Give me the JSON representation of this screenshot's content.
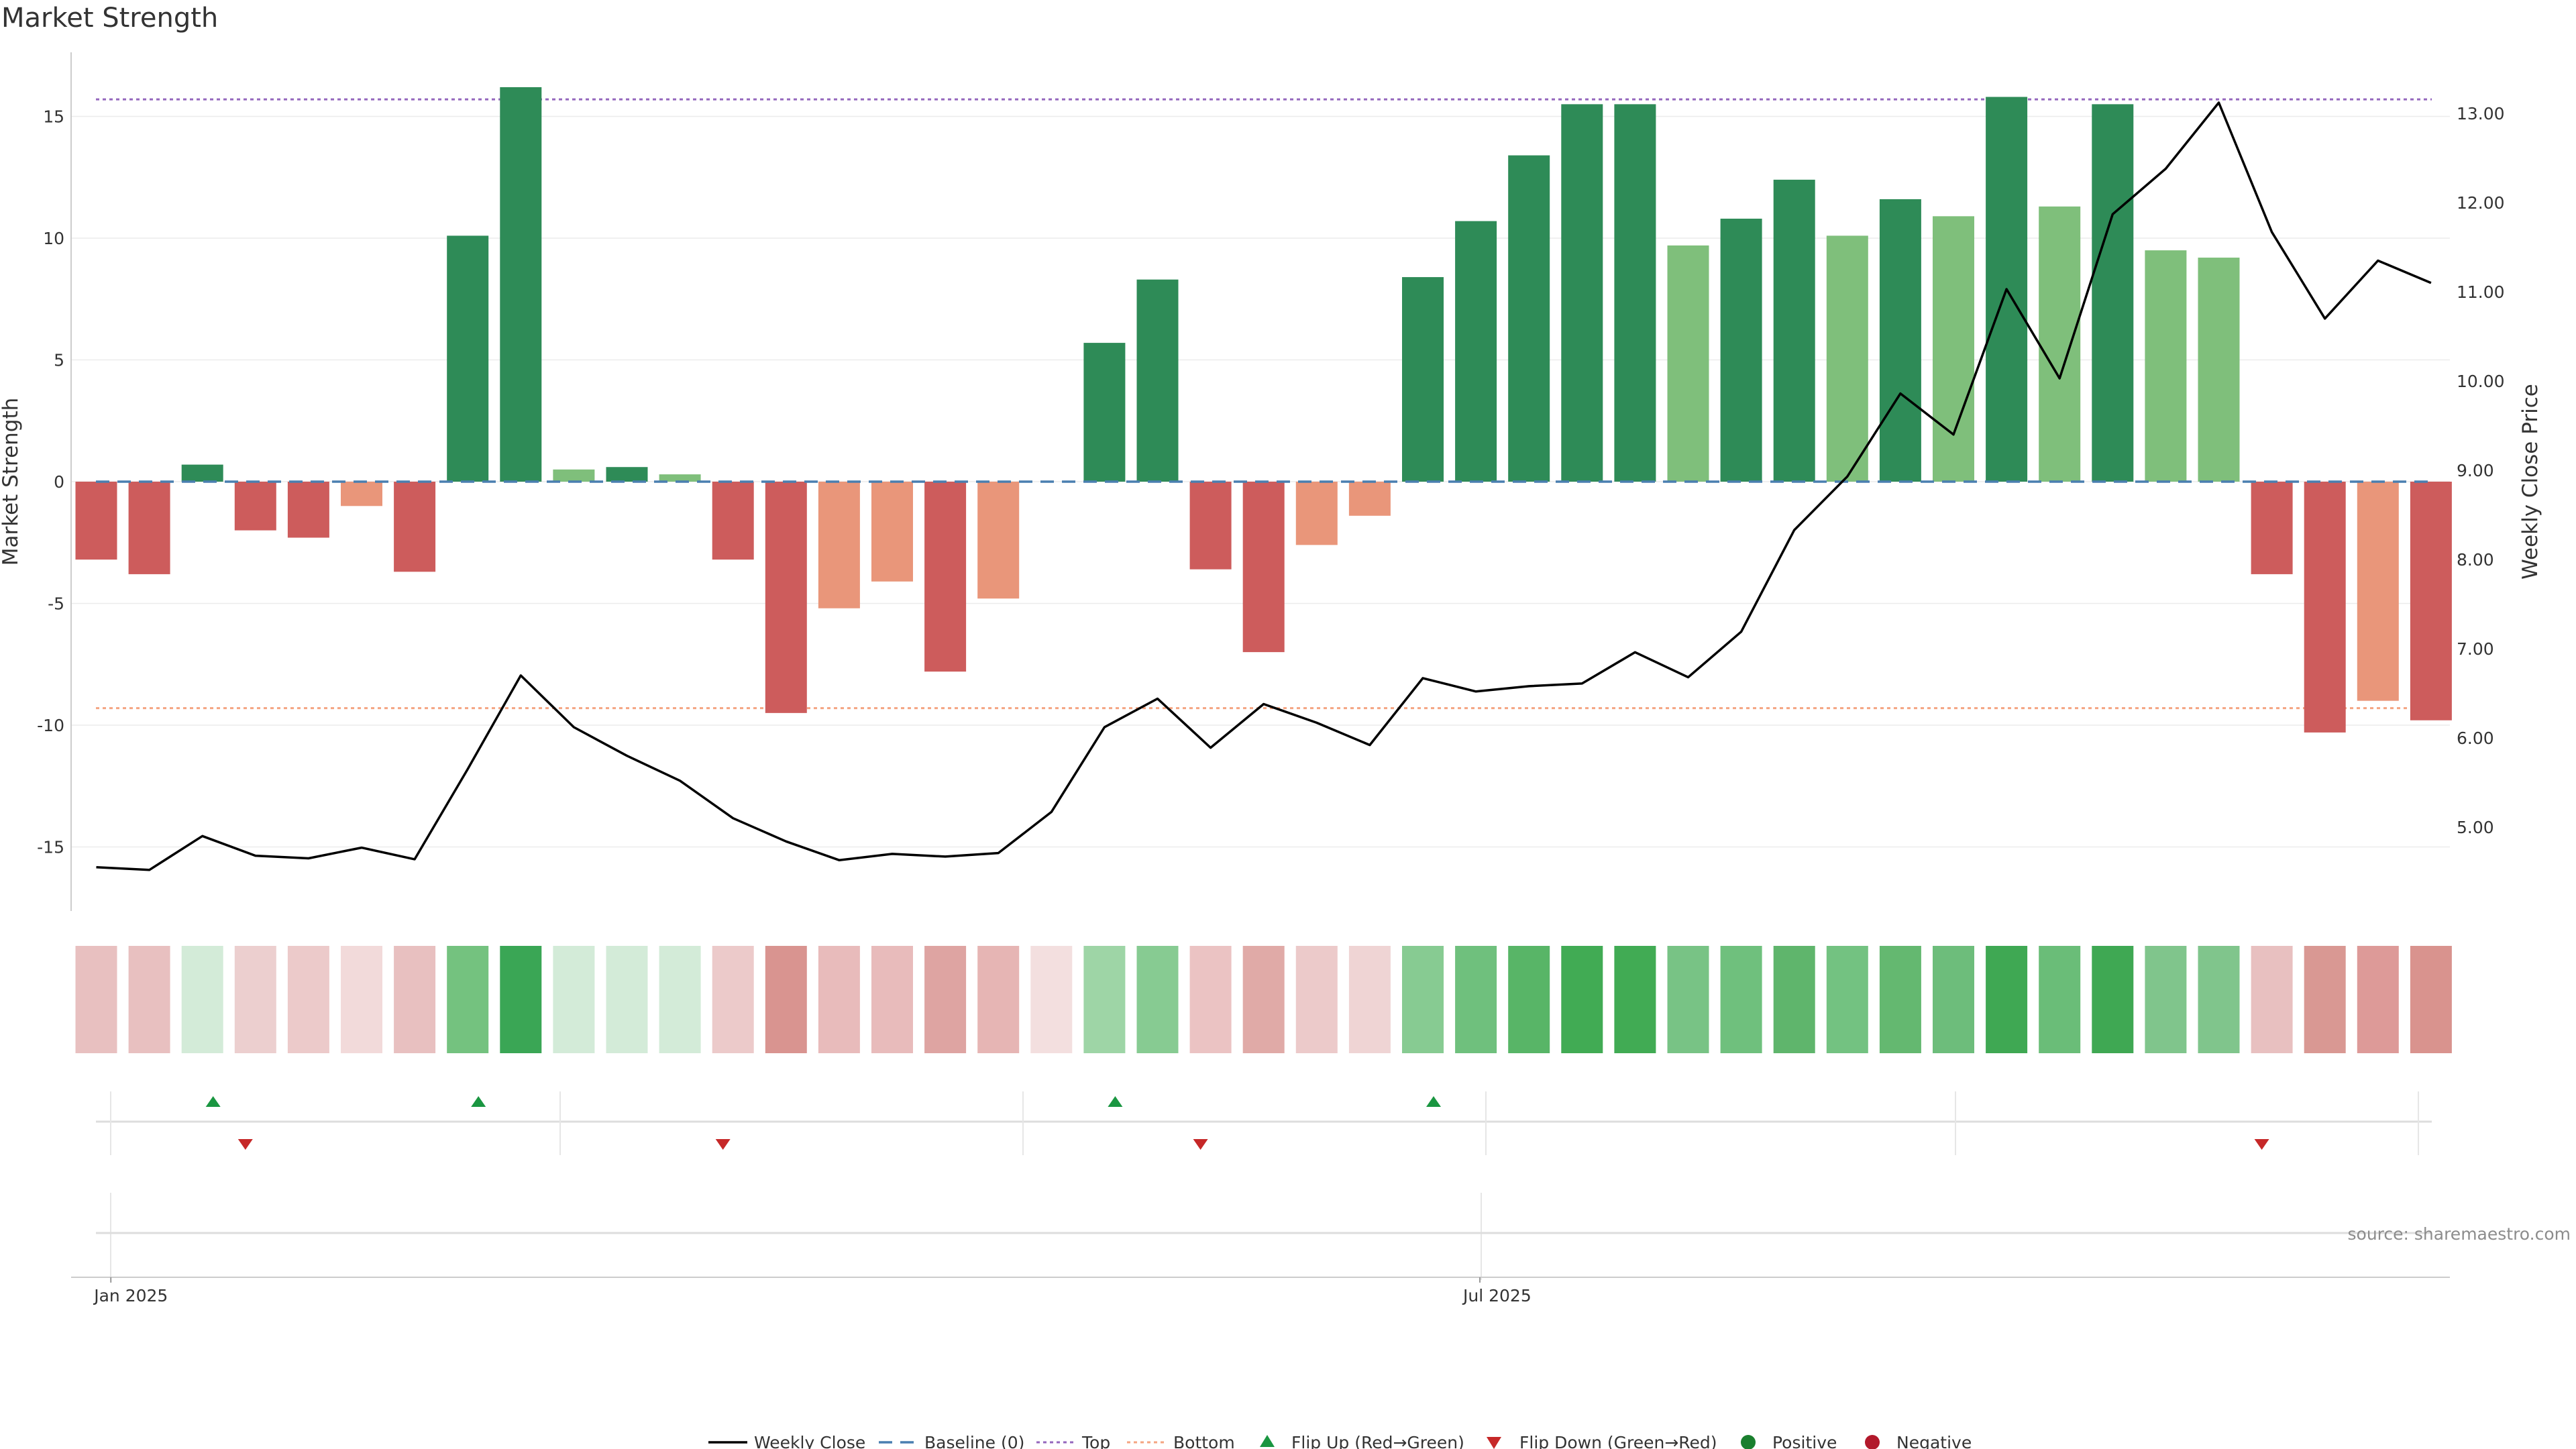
{
  "chart_data": {
    "type": "bar",
    "title": "Market Strength",
    "ylabel": "Market Strength",
    "y2label": "Weekly Close Price",
    "ylim": [
      -17.5,
      17.5
    ],
    "y2lim": [
      4.0,
      13.5
    ],
    "yticks": [
      15,
      10,
      5,
      0,
      -5,
      -10,
      -15
    ],
    "y2ticks": [
      "5.00",
      "6.00",
      "7.00",
      "8.00",
      "9.00",
      "10.00",
      "11.00",
      "12.00",
      "13.00"
    ],
    "top_line": 15.7,
    "bottom_line": -9.3,
    "x_tick_labels": [
      {
        "index": 0.3,
        "label": "Jan 2025"
      },
      {
        "index": 26.1,
        "label": "Jul 2025"
      }
    ],
    "strength": [
      -3.2,
      -3.8,
      0.7,
      -2.0,
      -2.3,
      -1.0,
      -3.7,
      10.1,
      16.2,
      0.5,
      0.6,
      0.3,
      -3.2,
      -9.5,
      -5.2,
      -4.1,
      -7.8,
      -4.8,
      0.0,
      5.7,
      8.3,
      -3.6,
      -7.0,
      -2.6,
      -1.4,
      8.4,
      10.7,
      13.4,
      15.5,
      15.5,
      9.7,
      10.8,
      12.4,
      10.1,
      11.6,
      10.9,
      15.8,
      11.3,
      15.5,
      9.5,
      9.2,
      -3.8,
      -10.3,
      -9.0,
      -9.8
    ],
    "bar_shade": [
      "dark",
      "dark",
      "dark",
      "dark",
      "dark",
      "light",
      "dark",
      "dark",
      "dark",
      "light",
      "dark",
      "light",
      "dark",
      "dark",
      "light",
      "light",
      "dark",
      "light",
      "none",
      "dark",
      "dark",
      "dark",
      "dark",
      "light",
      "light",
      "dark",
      "dark",
      "dark",
      "dark",
      "dark",
      "light",
      "dark",
      "dark",
      "light",
      "dark",
      "light",
      "dark",
      "light",
      "dark",
      "light",
      "light",
      "dark",
      "dark",
      "light",
      "dark"
    ],
    "weekly_close": [
      4.55,
      4.52,
      4.9,
      4.68,
      4.65,
      4.77,
      4.64,
      5.65,
      6.7,
      6.12,
      5.8,
      5.52,
      5.1,
      4.84,
      4.63,
      4.7,
      4.67,
      4.71,
      5.17,
      6.12,
      6.44,
      5.89,
      6.38,
      6.17,
      5.92,
      6.67,
      6.52,
      6.58,
      6.61,
      6.96,
      6.68,
      7.19,
      8.33,
      8.93,
      9.86,
      9.4,
      11.03,
      10.03,
      11.87,
      12.38,
      13.12,
      11.67,
      10.7,
      11.35,
      11.1
    ],
    "heat_colors": [
      "#e8c0c0",
      "#e8c0c0",
      "#d3ebd8",
      "#eccfcf",
      "#eccaca",
      "#f2dada",
      "#e8c0c0",
      "#74c27f",
      "#3aa655",
      "#d3ebd8",
      "#d3ebd8",
      "#d3ebd8",
      "#eccaca",
      "#d99490",
      "#e8bbbb",
      "#e8bbbb",
      "#dea4a2",
      "#e6b5b4",
      "#f3dfdf",
      "#9ed5a6",
      "#87cb92",
      "#ebc3c3",
      "#e0aaa7",
      "#eccaca",
      "#efd4d4",
      "#87cb92",
      "#6fc07d",
      "#58b567",
      "#41ab54",
      "#41ab54",
      "#78c385",
      "#6fc07d",
      "#5fb56c",
      "#73c281",
      "#64b870",
      "#6dbd7b",
      "#3fa853",
      "#6abd78",
      "#3fa853",
      "#80c58c",
      "#80c58c",
      "#e8c0c0",
      "#d99893",
      "#dd9a98",
      "#d9938e"
    ],
    "flip_up": [
      2,
      7,
      19,
      25
    ],
    "flip_down": [
      3,
      12,
      21,
      41
    ],
    "colors": {
      "dark_green": "#2e8b57",
      "light_green": "#7fbf7b",
      "dark_red": "#cd5c5c",
      "light_red": "#e9967a",
      "baseline": "#4a7fb0",
      "top": "#9467bd",
      "bottom": "#f4a582",
      "weekly_close": "#000000",
      "flip_up": "#1a9641",
      "flip_down": "#c62828",
      "positive": "#1a7f2e",
      "negative": "#b2182b"
    }
  },
  "legend": {
    "weekly_close": "Weekly Close",
    "baseline": "Baseline (0)",
    "top": "Top",
    "bottom": "Bottom",
    "flip_up": "Flip Up (Red→Green)",
    "flip_down": "Flip Down (Green→Red)",
    "positive": "Positive",
    "negative": "Negative"
  },
  "source": "source: sharemaestro.com"
}
